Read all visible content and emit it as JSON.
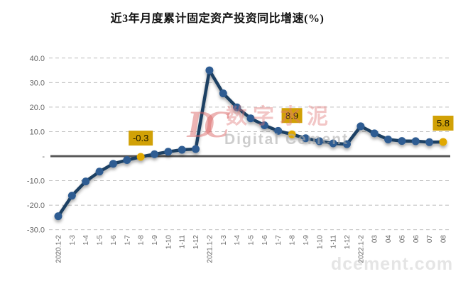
{
  "title": "近3年月度累计固定资产投资同比增速(%)",
  "watermark": {
    "logo": "DC",
    "cn": "数字水泥",
    "en": "Digital Cement",
    "site": "dcement.com"
  },
  "chart_data": {
    "type": "line",
    "title": "近3年月度累计固定资产投资同比增速(%)",
    "xlabel": "",
    "ylabel": "",
    "ylim": [
      -30,
      40
    ],
    "grid": "horizontal-dashed",
    "legend": "none",
    "categories": [
      "2020.1-2",
      "1-3",
      "1-4",
      "1-5",
      "1-6",
      "1-7",
      "1-8",
      "1-9",
      "1-10",
      "1-11",
      "1-12",
      "2021.1-2",
      "1-3",
      "1-4",
      "1-5",
      "1-6",
      "1-7",
      "1-8",
      "1-9",
      "1-10",
      "1-11",
      "1-12",
      "2022.1-2",
      "03",
      "04",
      "05",
      "06",
      "07",
      "08"
    ],
    "values": [
      -24.5,
      -16.1,
      -10.3,
      -6.3,
      -3.1,
      -1.6,
      -0.3,
      0.8,
      1.8,
      2.6,
      2.9,
      35.0,
      25.6,
      19.9,
      15.4,
      12.6,
      10.3,
      8.9,
      7.3,
      6.1,
      5.2,
      4.9,
      12.2,
      9.3,
      6.8,
      6.2,
      6.1,
      5.7,
      5.8
    ],
    "y_ticks": [
      40,
      30,
      20,
      10,
      0,
      -10,
      -20,
      -30
    ],
    "y_tick_labels": [
      "40.0",
      "30.0",
      "20.0",
      "10.0",
      "-",
      "-10.0",
      "-20.0",
      "-30.0"
    ],
    "highlight_indices": [
      6,
      17,
      28
    ],
    "annotations": [
      {
        "index": 6,
        "label": "-0.3"
      },
      {
        "index": 17,
        "label": "8.9"
      },
      {
        "index": 28,
        "label": "5.8"
      }
    ],
    "colors": {
      "line": "#1E4164",
      "marker": "#2E5C92",
      "highlight_marker": "#E0A800",
      "annotation_bg": "#D1A106",
      "annotation_text": "#151200",
      "zero_line": "#595959",
      "grid_line": "#BFBFBF",
      "tick_text": "#666666",
      "title_text": "#111111"
    }
  }
}
